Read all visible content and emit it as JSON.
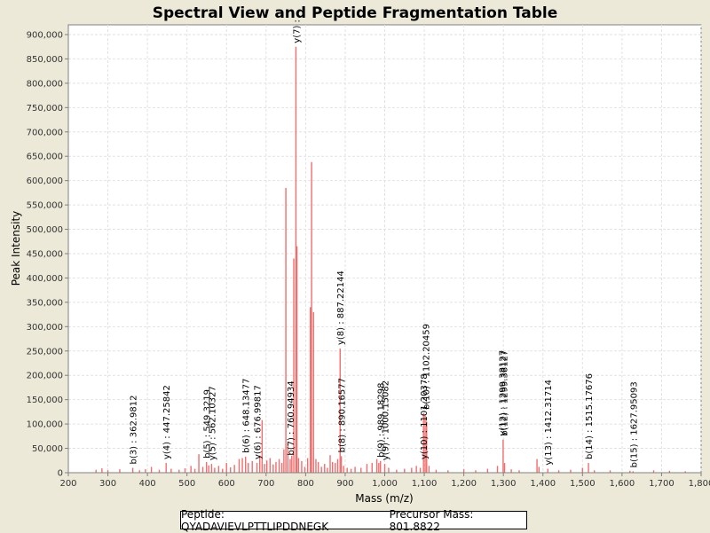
{
  "chart_data": {
    "type": "bar",
    "title": "Spectral View and Peptide Fragmentation Table",
    "xlabel": "Mass (m/z)",
    "ylabel": "Peak Intensity",
    "xlim": [
      200,
      1800
    ],
    "ylim": [
      0,
      920000
    ],
    "grid": true,
    "x_ticks": [
      200,
      300,
      400,
      500,
      600,
      700,
      800,
      900,
      1000,
      1100,
      1200,
      1300,
      1400,
      1500,
      1600,
      1700,
      1800
    ],
    "x_tick_labels": [
      "200",
      "300",
      "400",
      "500",
      "600",
      "700",
      "800",
      "900",
      "1,000",
      "1,100",
      "1,200",
      "1,300",
      "1,400",
      "1,500",
      "1,600",
      "1,700",
      "1,800"
    ],
    "y_ticks": [
      0,
      50000,
      100000,
      150000,
      200000,
      250000,
      300000,
      350000,
      400000,
      450000,
      500000,
      550000,
      600000,
      650000,
      700000,
      750000,
      800000,
      850000,
      900000
    ],
    "y_tick_labels": [
      "0",
      "50,000",
      "100,000",
      "150,000",
      "200,000",
      "250,000",
      "300,000",
      "350,000",
      "400,000",
      "450,000",
      "500,000",
      "550,000",
      "600,000",
      "650,000",
      "700,000",
      "750,000",
      "800,000",
      "850,000",
      "900,000"
    ],
    "series_color": "#F26D6D",
    "peaks": [
      [
        270,
        6000
      ],
      [
        285,
        9000
      ],
      [
        300,
        5000
      ],
      [
        330,
        7000
      ],
      [
        362.98,
        10000
      ],
      [
        380,
        5000
      ],
      [
        395,
        7000
      ],
      [
        410,
        12000
      ],
      [
        430,
        6000
      ],
      [
        447.26,
        20000
      ],
      [
        460,
        8000
      ],
      [
        480,
        6000
      ],
      [
        495,
        9000
      ],
      [
        510,
        14000
      ],
      [
        520,
        8000
      ],
      [
        530,
        38000
      ],
      [
        540,
        12000
      ],
      [
        549.32,
        22000
      ],
      [
        555,
        15000
      ],
      [
        562.1,
        18000
      ],
      [
        570,
        10000
      ],
      [
        580,
        14000
      ],
      [
        590,
        8000
      ],
      [
        600,
        20000
      ],
      [
        610,
        11000
      ],
      [
        620,
        16000
      ],
      [
        632,
        28000
      ],
      [
        640,
        30000
      ],
      [
        648.13,
        33000
      ],
      [
        655,
        20000
      ],
      [
        665,
        24000
      ],
      [
        676.99,
        20000
      ],
      [
        684,
        35000
      ],
      [
        690,
        108000
      ],
      [
        696,
        18000
      ],
      [
        702,
        25000
      ],
      [
        710,
        30000
      ],
      [
        718,
        17000
      ],
      [
        725,
        22000
      ],
      [
        733,
        28000
      ],
      [
        740,
        20000
      ],
      [
        745,
        48000
      ],
      [
        750,
        585000
      ],
      [
        755,
        60000
      ],
      [
        760.95,
        28000
      ],
      [
        765,
        35000
      ],
      [
        770,
        440000
      ],
      [
        775.5,
        875000
      ],
      [
        778,
        465000
      ],
      [
        782,
        30000
      ],
      [
        790,
        24000
      ],
      [
        798,
        12000
      ],
      [
        805,
        30000
      ],
      [
        812,
        340000
      ],
      [
        815,
        638000
      ],
      [
        820,
        330000
      ],
      [
        826,
        28000
      ],
      [
        832,
        22000
      ],
      [
        840,
        12000
      ],
      [
        848,
        18000
      ],
      [
        855,
        10000
      ],
      [
        862,
        36000
      ],
      [
        868,
        22000
      ],
      [
        875,
        20000
      ],
      [
        881,
        28000
      ],
      [
        887.22,
        255000
      ],
      [
        890.17,
        34000
      ],
      [
        896,
        14000
      ],
      [
        905,
        10000
      ],
      [
        915,
        8000
      ],
      [
        925,
        12000
      ],
      [
        940,
        10000
      ],
      [
        955,
        18000
      ],
      [
        968,
        20000
      ],
      [
        980,
        28000
      ],
      [
        985,
        20000
      ],
      [
        989.18,
        24000
      ],
      [
        1000.15,
        18000
      ],
      [
        1010,
        10000
      ],
      [
        1030,
        6000
      ],
      [
        1050,
        8000
      ],
      [
        1068,
        10000
      ],
      [
        1080,
        14000
      ],
      [
        1090,
        10000
      ],
      [
        1098,
        122000
      ],
      [
        1102.2,
        118000
      ],
      [
        1106,
        105000
      ],
      [
        1112,
        14000
      ],
      [
        1130,
        6000
      ],
      [
        1160,
        5000
      ],
      [
        1200,
        7000
      ],
      [
        1230,
        5000
      ],
      [
        1260,
        8000
      ],
      [
        1285,
        14000
      ],
      [
        1299.4,
        68000
      ],
      [
        1303,
        20000
      ],
      [
        1320,
        7000
      ],
      [
        1340,
        5000
      ],
      [
        1385,
        28000
      ],
      [
        1390,
        12000
      ],
      [
        1412.32,
        8000
      ],
      [
        1440,
        5000
      ],
      [
        1470,
        6000
      ],
      [
        1500,
        10000
      ],
      [
        1515.18,
        20000
      ],
      [
        1530,
        5000
      ],
      [
        1570,
        5000
      ],
      [
        1620,
        4000
      ],
      [
        1627.95,
        3000
      ],
      [
        1680,
        5000
      ],
      [
        1720,
        4000
      ],
      [
        1760,
        3000
      ]
    ],
    "annotations": [
      {
        "x": 362.98,
        "y": 10000,
        "text": "b(3) : 362.9812"
      },
      {
        "x": 447.26,
        "y": 20000,
        "text": "y(4) : 447.25842"
      },
      {
        "x": 549.32,
        "y": 22000,
        "text": "b(5) : 549.3219"
      },
      {
        "x": 562.1,
        "y": 18000,
        "text": "y(5) : 562.10327"
      },
      {
        "x": 648.13,
        "y": 33000,
        "text": "b(6) : 648.13477"
      },
      {
        "x": 676.99,
        "y": 20000,
        "text": "y(6) : 676.99817"
      },
      {
        "x": 760.95,
        "y": 28000,
        "text": "b(7) : 760.94934"
      },
      {
        "x": 775.5,
        "y": 875000,
        "text": "y(7) : "
      },
      {
        "x": 887.22,
        "y": 255000,
        "text": "y(8) : 887.22144"
      },
      {
        "x": 890.17,
        "y": 34000,
        "text": "b(8) : 890.16577"
      },
      {
        "x": 989.18,
        "y": 24000,
        "text": "b(9) : 989.18298"
      },
      {
        "x": 1000.15,
        "y": 18000,
        "text": "y(9) : 1000.15082"
      },
      {
        "x": 1098,
        "y": 20000,
        "text": "y(10) : 1101.20378"
      },
      {
        "x": 1103.5,
        "y": 122000,
        "text": "b(10) : 1102.20459"
      },
      {
        "x": 1296.5,
        "y": 68000,
        "text": "y(12) : 1299.38127"
      },
      {
        "x": 1300.5,
        "y": 68000,
        "text": "b(12) : 1299.38127"
      },
      {
        "x": 1412.32,
        "y": 8000,
        "text": "y(13) : 1412.31714"
      },
      {
        "x": 1515.18,
        "y": 20000,
        "text": "b(14) : 1515.17676"
      },
      {
        "x": 1627.95,
        "y": 3000,
        "text": "b(15) : 1627.95093"
      }
    ]
  },
  "footer": {
    "peptide": "Peptide: QYADAVIEVLPTTLIPDDNEGK",
    "precursor": "Precursor Mass: 801.8822"
  }
}
